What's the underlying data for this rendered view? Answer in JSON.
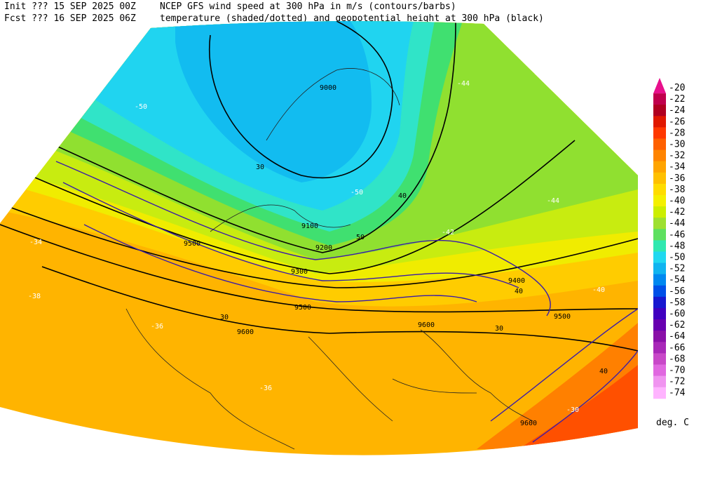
{
  "header": {
    "init_label": "Init  ??? 15 SEP 2025 00Z",
    "fcst_label": "Fcst ??? 16 SEP 2025 06Z",
    "line1": "NCEP GFS wind speed at 300 hPa in m/s (contours/barbs)",
    "line2": "temperature (shaded/dotted) and geopotential height at 300 hPa (black)"
  },
  "colorbar": {
    "levels": [
      -20,
      -22,
      -24,
      -26,
      -28,
      -30,
      -32,
      -34,
      -36,
      -38,
      -40,
      -42,
      -44,
      -46,
      -48,
      -50,
      -52,
      -54,
      -56,
      -58,
      -60,
      -62,
      -64,
      -66,
      -68,
      -70,
      -72,
      -74
    ],
    "colors": [
      "#e8108c",
      "#c0004c",
      "#b00020",
      "#e01800",
      "#ff3800",
      "#ff6000",
      "#ff8400",
      "#ffa400",
      "#ffc000",
      "#ffdc00",
      "#f4f000",
      "#ccee00",
      "#9ee030",
      "#5ee060",
      "#30e8b0",
      "#20d8f0",
      "#10b4f0",
      "#0088f0",
      "#0050e8",
      "#1818d0",
      "#4000c0",
      "#6800b0",
      "#8a10a8",
      "#a828b8",
      "#c848c8",
      "#e068e0",
      "#f094f0",
      "#ffb4ff"
    ],
    "unit": "deg. C"
  },
  "map_labels": [
    "9000",
    "9100",
    "9200",
    "9300",
    "9400",
    "9500",
    "9600",
    "9600",
    "9500",
    "9600",
    "9500",
    "30",
    "30",
    "40",
    "40",
    "50",
    "30",
    "40",
    "-50",
    "-50",
    "-44",
    "-44",
    "-36",
    "-36",
    "-38",
    "-34",
    "-42",
    "-40",
    "-30"
  ]
}
